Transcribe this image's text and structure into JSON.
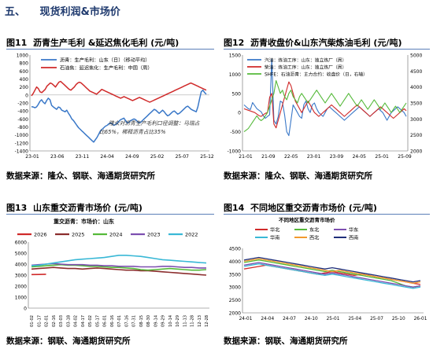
{
  "section": {
    "number": "五、",
    "title": "现货利润&市场价"
  },
  "figures": [
    {
      "id": "图11",
      "title": "沥青生产毛利 &延迟焦化毛利 (元/吨)",
      "source": "数据来源：隆众、钢联、海通期货研究所"
    },
    {
      "id": "图12",
      "title": "沥青收盘价&山东汽柴炼油毛利 (元/吨)",
      "source": "数据来源：隆众、钢联、海通期货研究所"
    },
    {
      "id": "图13",
      "title": "山东重交沥青市场价 (元/吨)",
      "source": "数据来源：钢联、海通期货研究所"
    },
    {
      "id": "图14",
      "title": "不同地区重交沥青市场价 (元/吨)",
      "source": "数据来源：钢联、海通期货研究所"
    }
  ],
  "colors": {
    "blue": "#3a78c8",
    "red": "#d02a2a",
    "green": "#55b93a",
    "orange": "#f29a2e",
    "purple": "#7d4fb0",
    "cyan": "#39b8d6",
    "darkred": "#8b2d2d",
    "navy": "#1f2f7a",
    "gray": "#9a9a9a"
  },
  "chart_data": [
    {
      "type": "line",
      "legend": [
        "沥青：生产毛利：山东（日）（移动平均）",
        "石油焦：延迟焦化：生产毛利：中国（周）"
      ],
      "annotation": [
        "隆众对沥青生产毛利口径调整：马瑞占",
        "比65%，稀释沥青占比35%"
      ],
      "yticks": [
        "1000",
        "800",
        "600",
        "400",
        "200",
        "0",
        "-200",
        "-400",
        "-600",
        "-800",
        "-1000",
        "-1200",
        "-1400"
      ],
      "ylim": [
        -1400,
        1000
      ],
      "xticks": [
        "23-01",
        "23-06",
        "23-11",
        "24-04",
        "24-09",
        "25-02",
        "25-07",
        "25-12"
      ],
      "series": [
        {
          "name": "沥青：生产毛利：山东（日）（移动平均）",
          "color": "blue",
          "values": [
            -290,
            -300,
            -320,
            -300,
            -240,
            -160,
            -120,
            -180,
            -220,
            -140,
            -80,
            -120,
            -260,
            -300,
            -330,
            -360,
            -300,
            -320,
            -380,
            -400,
            -420,
            -380,
            -460,
            -520,
            -600,
            -640,
            -700,
            -760,
            -820,
            -860,
            -900,
            -940,
            -980,
            -1020,
            -1060,
            -1100,
            -1140,
            -1180,
            -1120,
            -1060,
            -980,
            -900,
            -860,
            -820,
            -780,
            -760,
            -720,
            -700,
            -720,
            -760,
            -740,
            -700,
            -660,
            -620,
            -600,
            -580,
            -640,
            -700,
            -680,
            -640,
            -620,
            -600,
            -620,
            -660,
            -700,
            -680,
            -640,
            -600,
            -560,
            -520,
            -480,
            -440,
            -400,
            -360,
            -380,
            -420,
            -460,
            -420,
            -380,
            -420,
            -480,
            -520,
            -500,
            -460,
            -420,
            -400,
            -440,
            -480,
            -460,
            -420,
            -380,
            -340,
            -300,
            -280,
            -320,
            -360,
            -380,
            -400,
            -420,
            -300,
            -100,
            80,
            120,
            60,
            20
          ]
        },
        {
          "name": "石油焦：延迟焦化：生产毛利：中国（周）",
          "color": "red",
          "values": [
            -20,
            40,
            120,
            200,
            160,
            80,
            60,
            100,
            140,
            220,
            260,
            300,
            280,
            240,
            200,
            260,
            320,
            340,
            300,
            260,
            220,
            180,
            140,
            120,
            160,
            200,
            260,
            300,
            320,
            300,
            260,
            220,
            180,
            140,
            100,
            80,
            60,
            40,
            20,
            60,
            100,
            140,
            120,
            100,
            80,
            60,
            40,
            20,
            0,
            -20,
            -40,
            -60,
            -80,
            -60,
            -40,
            -60,
            -80,
            -100,
            -120,
            -140,
            -120,
            -100,
            -80,
            -60,
            -80,
            -100,
            -120,
            -140,
            -160,
            -180,
            -160,
            -140,
            -120,
            -100,
            -80,
            -60,
            -40,
            -20,
            0,
            20,
            40,
            60,
            80,
            100,
            120,
            140,
            160,
            180,
            200,
            220,
            240,
            260,
            280,
            300,
            280,
            260,
            240,
            220,
            200,
            180,
            160,
            140,
            120
          ]
        }
      ]
    },
    {
      "type": "line",
      "legend": [
        "汽油：炼油工序：山东：独立炼厂（周）",
        "柴油：炼油工序：山东：独立炼厂（周）",
        "SHFE：石油沥青：主力合约：收盘价（日，右轴）"
      ],
      "yticks_left": [
        "1500",
        "1000",
        "500",
        "0",
        "-500",
        "-1000"
      ],
      "ylim_left": [
        -1000,
        1500
      ],
      "yticks_right": [
        "5000",
        "4500",
        "4000",
        "3500",
        "3000",
        "2500",
        "2000"
      ],
      "ylim_right": [
        2000,
        5000
      ],
      "xticks": [
        "21-01",
        "21-09",
        "22-05",
        "23-01",
        "23-09",
        "24-05",
        "25-01",
        "25-09"
      ],
      "series": [
        {
          "name": "汽油：炼油工序：山东：独立炼厂（周）",
          "color": "blue",
          "axis": "left",
          "values": [
            200,
            150,
            100,
            80,
            260,
            180,
            100,
            60,
            20,
            -80,
            -150,
            -100,
            -60,
            1400,
            -200,
            -300,
            -100,
            300,
            260,
            -60,
            -500,
            -600,
            -200,
            200,
            100,
            0,
            -100,
            -150,
            200,
            300,
            100,
            0,
            200,
            250,
            100,
            0,
            -50,
            -100,
            0,
            100,
            150,
            100,
            50,
            0,
            -50,
            -100,
            -150,
            -200,
            -150,
            -100,
            -50,
            0,
            50,
            100,
            150,
            100,
            50,
            0,
            -50,
            -100,
            -50,
            0,
            50,
            100,
            50,
            0,
            -100,
            -200,
            -100,
            0,
            50,
            100,
            150,
            100,
            50,
            0,
            -100
          ]
        },
        {
          "name": "柴油：炼油工序：山东：独立炼厂（周）",
          "color": "red",
          "axis": "left",
          "values": [
            100,
            80,
            60,
            40,
            20,
            0,
            -40,
            -80,
            -100,
            -60,
            -20,
            0,
            400,
            500,
            -300,
            -400,
            -200,
            0,
            200,
            400,
            600,
            800,
            700,
            500,
            300,
            200,
            100,
            0,
            100,
            200,
            300,
            200,
            100,
            0,
            -50,
            -100,
            -50,
            0,
            50,
            100,
            150,
            200,
            150,
            100,
            50,
            0,
            -50,
            -100,
            -50,
            0,
            50,
            100,
            150,
            200,
            150,
            100,
            50,
            0,
            -50,
            -100,
            -50,
            0,
            50,
            100,
            150,
            100,
            50,
            0,
            -50,
            -100,
            -150,
            -100,
            -50,
            0,
            50,
            100,
            50
          ]
        },
        {
          "name": "SHFE：石油沥青：主力合约：收盘价（日，右轴）",
          "color": "green",
          "axis": "right",
          "values": [
            2600,
            2650,
            2700,
            2800,
            2900,
            3000,
            3100,
            3000,
            2950,
            3000,
            3100,
            3200,
            3400,
            3600,
            3800,
            4200,
            4000,
            3800,
            3900,
            3700,
            3600,
            3800,
            3900,
            3700,
            3600,
            3500,
            3700,
            3800,
            3700,
            3600,
            3500,
            3600,
            3700,
            3800,
            3900,
            3800,
            3700,
            3600,
            3500,
            3600,
            3700,
            3800,
            3700,
            3600,
            3500,
            3400,
            3500,
            3600,
            3700,
            3800,
            3700,
            3600,
            3500,
            3400,
            3500,
            3600,
            3500,
            3400,
            3300,
            3400,
            3500,
            3600,
            3500,
            3400,
            3300,
            3400,
            3500,
            3400,
            3300,
            3200,
            3300,
            3400,
            3300,
            3200,
            3300,
            3400,
            3500
          ]
        }
      ]
    },
    {
      "type": "line",
      "subtitle": "重交沥青：市场价：山东",
      "legend": [
        "2026",
        "2025",
        "2024",
        "2023",
        "2022"
      ],
      "yticks": [
        "6000",
        "5000",
        "4000",
        "3000",
        "2000",
        "1000",
        "0"
      ],
      "ylim": [
        0,
        6000
      ],
      "xticks": [
        "01-02",
        "01-17",
        "02-01",
        "02-16",
        "03-03",
        "03-18",
        "04-02",
        "04-17",
        "05-02",
        "05-17",
        "06-01",
        "06-16",
        "07-01",
        "07-16",
        "07-31",
        "08-15",
        "08-30",
        "09-14",
        "09-29",
        "10-14",
        "10-29",
        "11-13",
        "11-28",
        "12-13",
        "12-28"
      ],
      "series": [
        {
          "name": "2026",
          "color": "red",
          "values": [
            3050,
            3060,
            3080
          ]
        },
        {
          "name": "2025",
          "color": "darkred",
          "values": [
            3550,
            3600,
            3650,
            3700,
            3650,
            3600,
            3600,
            3550,
            3600,
            3650,
            3600,
            3550,
            3500,
            3450,
            3450,
            3400,
            3400,
            3350,
            3300,
            3250,
            3200,
            3150,
            3100,
            3050,
            3000
          ]
        },
        {
          "name": "2024",
          "color": "green",
          "values": [
            3750,
            3800,
            3850,
            3900,
            3950,
            3900,
            3900,
            3850,
            3800,
            3800,
            3750,
            3700,
            3700,
            3650,
            3600,
            3500,
            3450,
            3500,
            3550,
            3600,
            3550,
            3500,
            3450,
            3450,
            3500
          ]
        },
        {
          "name": "2023",
          "color": "purple",
          "values": [
            3900,
            3950,
            4000,
            4050,
            4000,
            3950,
            3950,
            3950,
            3900,
            3900,
            3850,
            3850,
            3800,
            3800,
            3800,
            3750,
            3750,
            3750,
            3800,
            3800,
            3750,
            3700,
            3700,
            3650,
            3650
          ]
        },
        {
          "name": "2022",
          "color": "cyan",
          "values": [
            3850,
            3900,
            4000,
            4100,
            4200,
            4300,
            4400,
            4450,
            4500,
            4550,
            4600,
            4700,
            4800,
            4800,
            4750,
            4700,
            4600,
            4500,
            4400,
            4350,
            4300,
            4250,
            4200,
            4150,
            4100
          ]
        }
      ]
    },
    {
      "type": "line",
      "subtitle": "不同地区重交沥青市场价",
      "legend": [
        "华北",
        "东北",
        "华东",
        "华南",
        "西北",
        "西南"
      ],
      "yticks": [
        "4500",
        "4000",
        "3500",
        "3000",
        "2500",
        "2000"
      ],
      "ylim": [
        2000,
        4500
      ],
      "xticks": [
        "24-01",
        "24-04",
        "24-07",
        "24-10",
        "25-01",
        "25-04",
        "25-07",
        "25-10",
        "26-01"
      ],
      "series": [
        {
          "name": "华北",
          "color": "red",
          "values": [
            3700,
            3750,
            3800,
            3850,
            3800,
            3750,
            3700,
            3650,
            3600,
            3550,
            3500,
            3550,
            3600,
            3550,
            3500,
            3450,
            3500,
            3450,
            3400,
            3350,
            3300,
            3250,
            3200,
            3150,
            3100
          ]
        },
        {
          "name": "东北",
          "color": "green",
          "values": [
            3950,
            4000,
            4050,
            4000,
            3950,
            3900,
            3850,
            3800,
            3750,
            3700,
            3650,
            3600,
            3650,
            3600,
            3550,
            3500,
            3450,
            3400,
            3350,
            3300,
            3250,
            3150,
            3050,
            3000,
            3050
          ]
        },
        {
          "name": "华东",
          "color": "purple",
          "values": [
            3850,
            3900,
            3950,
            3900,
            3850,
            3800,
            3750,
            3700,
            3650,
            3600,
            3550,
            3500,
            3550,
            3500,
            3450,
            3400,
            3350,
            3300,
            3250,
            3200,
            3150,
            3100,
            3050,
            3000,
            3050
          ]
        },
        {
          "name": "华南",
          "color": "cyan",
          "values": [
            3800,
            3850,
            3900,
            3850,
            3800,
            3750,
            3700,
            3650,
            3600,
            3550,
            3500,
            3450,
            3500,
            3450,
            3400,
            3350,
            3300,
            3250,
            3200,
            3150,
            3100,
            3050,
            3000,
            2950,
            3000
          ]
        },
        {
          "name": "西北",
          "color": "orange",
          "values": [
            4000,
            4050,
            4100,
            4050,
            4000,
            3950,
            3900,
            3850,
            3800,
            3750,
            3700,
            3650,
            3600,
            3650,
            3600,
            3550,
            3500,
            3450,
            3400,
            3350,
            3300,
            3250,
            3200,
            3150,
            3200
          ]
        },
        {
          "name": "西南",
          "color": "navy",
          "values": [
            4050,
            4100,
            4150,
            4100,
            4050,
            4000,
            3950,
            3900,
            3850,
            3800,
            3750,
            3700,
            3750,
            3700,
            3650,
            3600,
            3550,
            3500,
            3450,
            3400,
            3350,
            3300,
            3250,
            3200,
            3250
          ]
        }
      ]
    }
  ]
}
